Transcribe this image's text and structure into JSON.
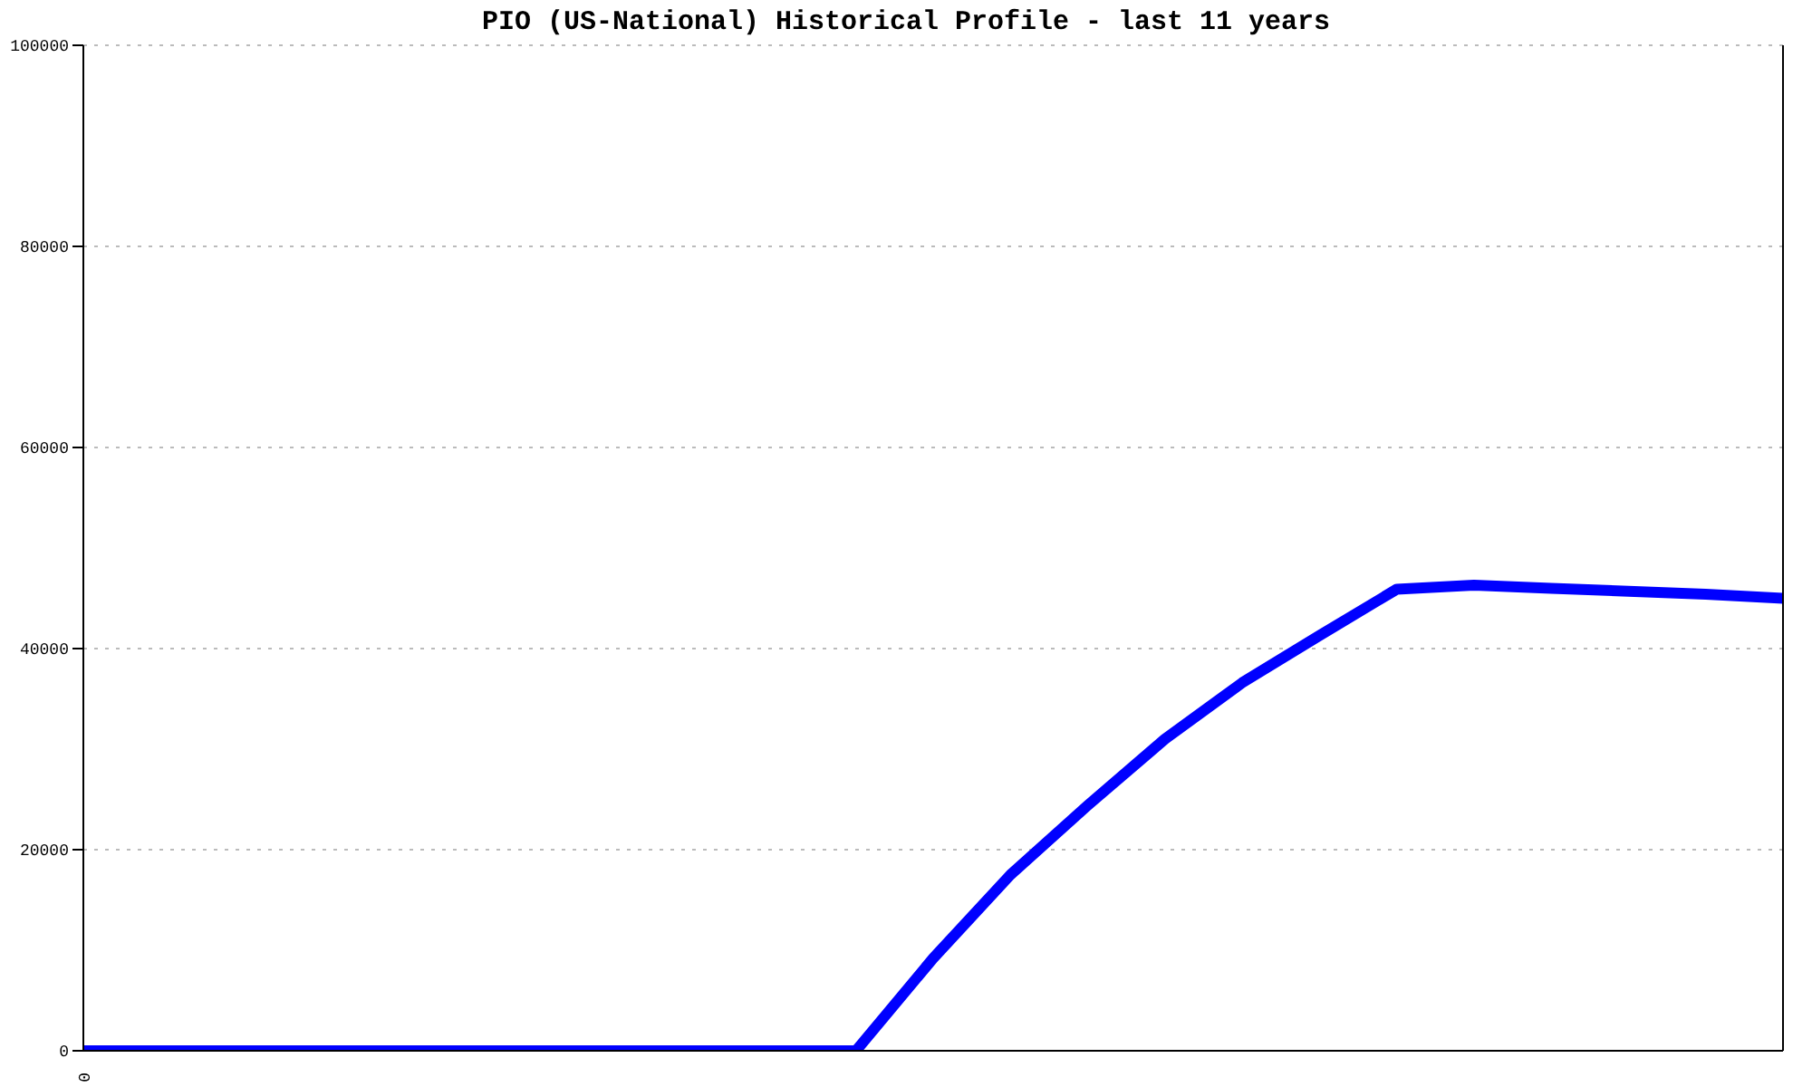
{
  "chart_data": {
    "type": "line",
    "title": "PIO (US-National) Historical Profile - last 11 years",
    "categories": [
      "0",
      null,
      null,
      null,
      null,
      null,
      null,
      null,
      null,
      null,
      null,
      null,
      null,
      null,
      null,
      null,
      null,
      null,
      null,
      null,
      null,
      null,
      null
    ],
    "series": [
      {
        "color": "#0000ff",
        "values": [
          0,
          0,
          0,
          0,
          0,
          0,
          0,
          0,
          0,
          0,
          0,
          9200,
          17500,
          24400,
          31000,
          36600,
          41300,
          45900,
          46300,
          46000,
          45700,
          45400,
          45000
        ]
      }
    ],
    "ylim": [
      0,
      100000
    ],
    "yticks": [
      0,
      20000,
      40000,
      60000,
      80000,
      100000
    ],
    "grid": "y",
    "marker": "none",
    "line_style": "solid"
  }
}
